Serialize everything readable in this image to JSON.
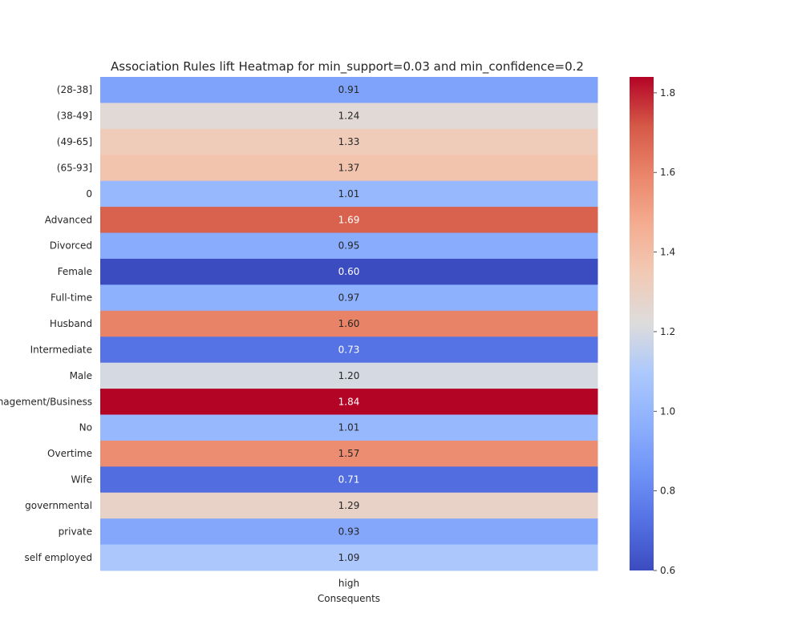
{
  "chart_data": {
    "type": "heatmap",
    "title": "Association Rules lift Heatmap for min_support=0.03 and min_confidence=0.2",
    "xlabel": "Consequents",
    "ylabel": "",
    "columns": [
      "high"
    ],
    "rows": [
      "(28-38]",
      "(38-49]",
      "(49-65]",
      "(65-93]",
      "0",
      "Advanced",
      "Divorced",
      "Female",
      "Full-time",
      "Husband",
      "Intermediate",
      "Male",
      "Management/Business",
      "No",
      "Overtime",
      "Wife",
      "governmental",
      "private",
      "self employed"
    ],
    "values": [
      0.91,
      1.24,
      1.33,
      1.37,
      1.01,
      1.69,
      0.95,
      0.6,
      0.97,
      1.6,
      0.73,
      1.2,
      1.84,
      1.01,
      1.57,
      0.71,
      1.29,
      0.93,
      1.09
    ],
    "value_labels": [
      "0.91",
      "1.24",
      "1.33",
      "1.37",
      "1.01",
      "1.69",
      "0.95",
      "0.60",
      "0.97",
      "1.60",
      "0.73",
      "1.20",
      "1.84",
      "1.01",
      "1.57",
      "0.71",
      "1.29",
      "0.93",
      "1.09"
    ],
    "colormap": "coolwarm",
    "vmin": 0.6,
    "vmax": 1.84,
    "colorbar_ticks": [
      "0.6",
      "0.8",
      "1.0",
      "1.2",
      "1.4",
      "1.6",
      "1.8"
    ],
    "grid": false,
    "colorbar": "right"
  }
}
